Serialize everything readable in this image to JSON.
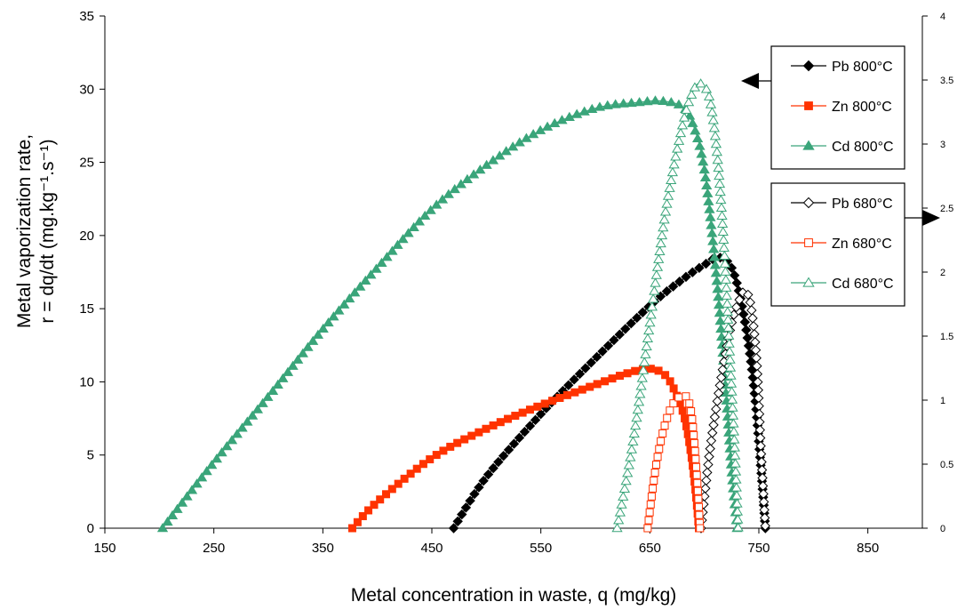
{
  "chart_data": {
    "type": "line",
    "xlabel": "Metal concentration in waste, q (mg/kg)",
    "ylabel_line1": "Metal vaporization rate,",
    "ylabel_line2": "r = dq/dt (mg.kg⁻¹.s⁻¹)",
    "xlim": [
      150,
      900
    ],
    "ylim_left": [
      0,
      35
    ],
    "ylim_right": [
      0,
      4
    ],
    "x_ticks": [
      150,
      250,
      350,
      450,
      550,
      650,
      750,
      850
    ],
    "y_ticks_left": [
      0,
      5,
      10,
      15,
      20,
      25,
      30,
      35
    ],
    "y_ticks_right": [
      "0",
      "0.5",
      "1",
      "1.5",
      "2",
      "2.5",
      "3",
      "3.5",
      "4"
    ],
    "legend_800_arrow": "left",
    "legend_680_arrow": "right",
    "series": [
      {
        "name": "Pb 800°C",
        "axis": "left",
        "color": "#000000",
        "marker": "diamond",
        "filled": true,
        "group": "800",
        "x": [
          470,
          500,
          550,
          600,
          650,
          680,
          700,
          713,
          725,
          735,
          745,
          752,
          756
        ],
        "y": [
          0,
          3.5,
          7.8,
          11.6,
          15.2,
          17.0,
          18.0,
          18.5,
          17.8,
          15.0,
          10.0,
          4.0,
          0
        ]
      },
      {
        "name": "Zn 800°C",
        "axis": "left",
        "color": "#ff3300",
        "marker": "square",
        "filled": true,
        "group": "800",
        "x": [
          377,
          400,
          450,
          500,
          550,
          600,
          630,
          650,
          665,
          675,
          682,
          688,
          692,
          695
        ],
        "y": [
          0,
          1.8,
          4.8,
          6.8,
          8.4,
          9.8,
          10.6,
          10.9,
          10.4,
          9.0,
          7.5,
          5.0,
          2.5,
          0
        ]
      },
      {
        "name": "Cd 800°C",
        "axis": "left",
        "color": "#3aa57a",
        "marker": "triangle",
        "filled": true,
        "group": "800",
        "x": [
          203,
          250,
          300,
          350,
          400,
          450,
          500,
          550,
          600,
          640,
          660,
          680,
          690,
          700,
          710,
          718,
          725,
          730
        ],
        "y": [
          0,
          4.5,
          9.0,
          13.6,
          17.8,
          21.8,
          24.8,
          27.2,
          28.7,
          29.1,
          29.2,
          28.8,
          27.5,
          24.5,
          18.0,
          11.0,
          4.0,
          0
        ]
      },
      {
        "name": "Pb 680°C",
        "axis": "right",
        "color": "#000000",
        "marker": "diamond",
        "filled": false,
        "group": "680",
        "x": [
          697,
          705,
          715,
          725,
          733,
          738,
          743,
          748,
          752,
          756
        ],
        "y": [
          0,
          0.6,
          1.15,
          1.6,
          1.8,
          1.85,
          1.72,
          1.3,
          0.6,
          0
        ]
      },
      {
        "name": "Zn 680°C",
        "axis": "right",
        "color": "#ff3300",
        "marker": "square",
        "filled": false,
        "group": "680",
        "x": [
          648,
          655,
          662,
          670,
          678,
          684,
          688,
          691,
          694,
          696
        ],
        "y": [
          0,
          0.45,
          0.75,
          0.95,
          1.03,
          1.02,
          0.9,
          0.65,
          0.3,
          0
        ]
      },
      {
        "name": "Cd 680°C",
        "axis": "right",
        "color": "#3aa57a",
        "marker": "triangle",
        "filled": false,
        "group": "680",
        "x": [
          620,
          635,
          650,
          665,
          680,
          690,
          697,
          705,
          712,
          718,
          724,
          728,
          731
        ],
        "y": [
          0,
          0.7,
          1.6,
          2.5,
          3.15,
          3.42,
          3.47,
          3.35,
          2.9,
          2.2,
          1.25,
          0.6,
          0
        ]
      }
    ]
  }
}
